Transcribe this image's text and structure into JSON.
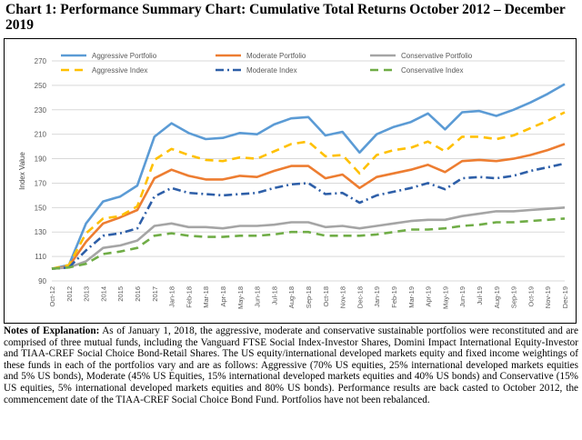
{
  "header": {
    "title": "Chart 1:  Performance Summary Chart:  Cumulative Total Returns October 2012 – December 2019"
  },
  "notes": {
    "label": "Notes of Explanation:",
    "text": "  As of January 1, 2018, the aggressive, moderate and conservative sustainable portfolios were reconstituted and are comprised of three mutual funds, including the Vanguard FTSE Social Index-Investor Shares, Domini Impact International Equity-Investor and TIAA-CREF Social Choice Bond-Retail Shares. The US equity/international developed markets equity and fixed income weightings of these funds in each of the portfolios vary and are as follows:  Aggressive (70% US equities, 25% international developed markets equities and 5% US bonds), Moderate (45% US Equities, 15% international developed markets equities and 40% US bonds) and Conservative (15% US equities, 5% international developed markets equities and 80% US bonds).  Performance results are back casted to October 2012, the commencement date of the TIAA-CREF Social Choice Bond Fund.  Portfolios have not been rebalanced."
  },
  "chart_data": {
    "type": "line",
    "ylabel": "Index Value",
    "xlabel": "",
    "ylim": [
      90,
      270
    ],
    "yticks": [
      90,
      110,
      130,
      150,
      170,
      190,
      210,
      230,
      250,
      270
    ],
    "grid": true,
    "legend_position": "top",
    "categories": [
      "Oct-12",
      "2012",
      "2013",
      "2014",
      "2015",
      "2016",
      "2017",
      "Jan-18",
      "Feb-18",
      "Mar-18",
      "Apr-18",
      "May-18",
      "Jun-18",
      "Jul-18",
      "Aug-18",
      "Sep-18",
      "Oct-18",
      "Nov-18",
      "Dec-18",
      "Jan-19",
      "Feb-19",
      "Mar-19",
      "Apr-19",
      "May-19",
      "Jun-19",
      "Jul-19",
      "Aug-19",
      "Sep-19",
      "Oct-19",
      "Nov-19",
      "Dec-19"
    ],
    "series": [
      {
        "name": "Aggressive Portfolio",
        "color": "#5b9bd5",
        "dash": "solid",
        "values": [
          100,
          103,
          137,
          155,
          159,
          168,
          208,
          219,
          211,
          206,
          207,
          211,
          210,
          218,
          223,
          224,
          209,
          212,
          195,
          210,
          216,
          220,
          227,
          214,
          228,
          229,
          225,
          230,
          236,
          243,
          251
        ]
      },
      {
        "name": "Moderate Portfolio",
        "color": "#ed7d31",
        "dash": "solid",
        "values": [
          100,
          102,
          122,
          137,
          142,
          148,
          174,
          181,
          176,
          173,
          173,
          176,
          175,
          180,
          184,
          184,
          174,
          177,
          166,
          175,
          178,
          181,
          185,
          179,
          188,
          189,
          188,
          190,
          193,
          197,
          202
        ]
      },
      {
        "name": "Conservative Portfolio",
        "color": "#a5a5a5",
        "dash": "solid",
        "values": [
          100,
          101,
          106,
          117,
          119,
          123,
          135,
          137,
          134,
          134,
          133,
          135,
          135,
          136,
          138,
          138,
          134,
          135,
          133,
          135,
          137,
          139,
          140,
          140,
          143,
          145,
          147,
          147,
          148,
          149,
          150
        ]
      },
      {
        "name": "Aggressive Index",
        "color": "#ffc000",
        "dash": "dash",
        "values": [
          100,
          103,
          129,
          141,
          143,
          151,
          189,
          198,
          193,
          189,
          188,
          191,
          190,
          196,
          202,
          204,
          192,
          193,
          178,
          193,
          197,
          199,
          204,
          196,
          208,
          208,
          206,
          209,
          215,
          221,
          228
        ]
      },
      {
        "name": "Moderate Index",
        "color": "#2e5fa8",
        "dash": "dashdot",
        "values": [
          100,
          101,
          115,
          127,
          129,
          133,
          159,
          166,
          162,
          161,
          160,
          161,
          162,
          166,
          169,
          170,
          161,
          162,
          154,
          160,
          163,
          166,
          170,
          165,
          174,
          175,
          174,
          176,
          180,
          183,
          186
        ]
      },
      {
        "name": "Conservative Index",
        "color": "#70ad47",
        "dash": "dash",
        "values": [
          100,
          101,
          104,
          112,
          114,
          117,
          127,
          129,
          127,
          126,
          126,
          127,
          127,
          128,
          130,
          130,
          127,
          127,
          127,
          128,
          130,
          132,
          132,
          133,
          135,
          136,
          138,
          138,
          139,
          140,
          141
        ]
      }
    ]
  }
}
